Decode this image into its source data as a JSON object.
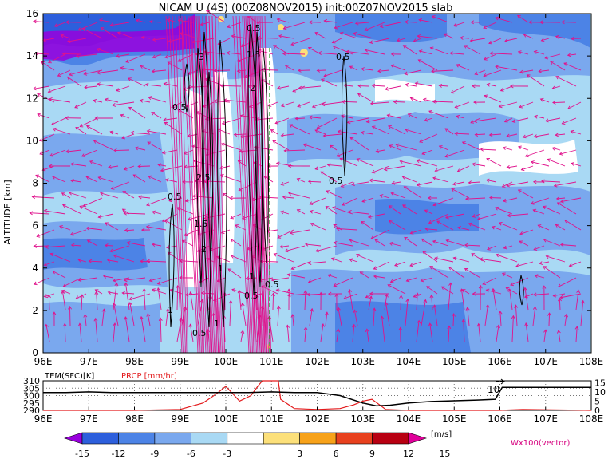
{
  "header": {
    "title": "NICAM U (4S) (00Z08NOV2015) init:00Z07NOV2015 slab"
  },
  "chart_data": [
    {
      "type": "heatmap",
      "title": "NICAM U (4S) (00Z08NOV2015) init:00Z07NOV2015 slab",
      "xlabel": "",
      "ylabel": "ALTITUDE [km]",
      "x_ticks": [
        "96E",
        "97E",
        "98E",
        "99E",
        "100E",
        "101E",
        "102E",
        "103E",
        "104E",
        "105E",
        "106E",
        "107E",
        "108E"
      ],
      "x_range": [
        96,
        108
      ],
      "y_ticks": [
        "0",
        "2",
        "4",
        "6",
        "8",
        "10",
        "12",
        "14",
        "16"
      ],
      "y_range": [
        0,
        16
      ],
      "contour_labels": [
        "0.5",
        "1",
        "1.5",
        "2",
        "2.5",
        "3",
        "0.5",
        "1",
        "1.5",
        "2",
        "0.5",
        "1",
        "0.5",
        "0.5",
        "0.5",
        "0.5",
        "1",
        "0.5"
      ],
      "vector_label": "Wx100(vector)",
      "colorbar": {
        "unit": "[m/s]",
        "ticks": [
          "-15",
          "-12",
          "-9",
          "-6",
          "-3",
          "3",
          "6",
          "9",
          "12",
          "15"
        ],
        "colors": [
          "#9900dd",
          "#2d5fdc",
          "#4c83e6",
          "#7aa8ee",
          "#a9d9f4",
          "#ffffff",
          "#fce07a",
          "#f7a21a",
          "#e8411e",
          "#b80012",
          "#e0009a"
        ]
      }
    },
    {
      "type": "line",
      "labels": {
        "tem": "TEM(SFC)[K]",
        "prcp": "PRCP [mm/hr]"
      },
      "x_ticks": [
        "96E",
        "97E",
        "98E",
        "99E",
        "100E",
        "101E",
        "102E",
        "103E",
        "104E",
        "105E",
        "106E",
        "107E",
        "108E"
      ],
      "left_ticks": [
        "310",
        "305",
        "300",
        "295",
        "290"
      ],
      "right_ticks": [
        "15",
        "10",
        "5",
        "0"
      ],
      "inline_label": "10",
      "series": [
        {
          "name": "TEM(SFC)[K]",
          "color": "#000000",
          "x": [
            96,
            96.5,
            97,
            97.5,
            98,
            98.5,
            99,
            99.5,
            100,
            100.5,
            101,
            101.5,
            102,
            102.5,
            103,
            103.3,
            103.6,
            104,
            104.5,
            105,
            105.5,
            105.9,
            106.05,
            106.5,
            107,
            107.5,
            108
          ],
          "y": [
            302,
            302,
            302.5,
            302,
            302,
            302,
            302,
            302,
            302,
            302,
            302.5,
            302,
            302,
            300,
            295,
            293,
            293.5,
            295,
            296,
            296.5,
            297,
            297.5,
            305.5,
            305.5,
            305.5,
            305.5,
            305.5
          ]
        },
        {
          "name": "PRCP [mm/hr]",
          "color": "#e31a1c",
          "x": [
            96,
            98,
            99,
            99.5,
            99.8,
            100,
            100.3,
            100.55,
            100.7,
            100.8,
            101.15,
            101.2,
            101.5,
            102,
            102.5,
            102.8,
            103,
            103.2,
            103.5,
            104,
            106,
            106.5,
            108
          ],
          "y": [
            0,
            0,
            0.5,
            4,
            9,
            13,
            5,
            8,
            13,
            16,
            16,
            6,
            1,
            0.5,
            1,
            3,
            5,
            6,
            0.5,
            0,
            0,
            0.5,
            0
          ]
        }
      ]
    }
  ]
}
